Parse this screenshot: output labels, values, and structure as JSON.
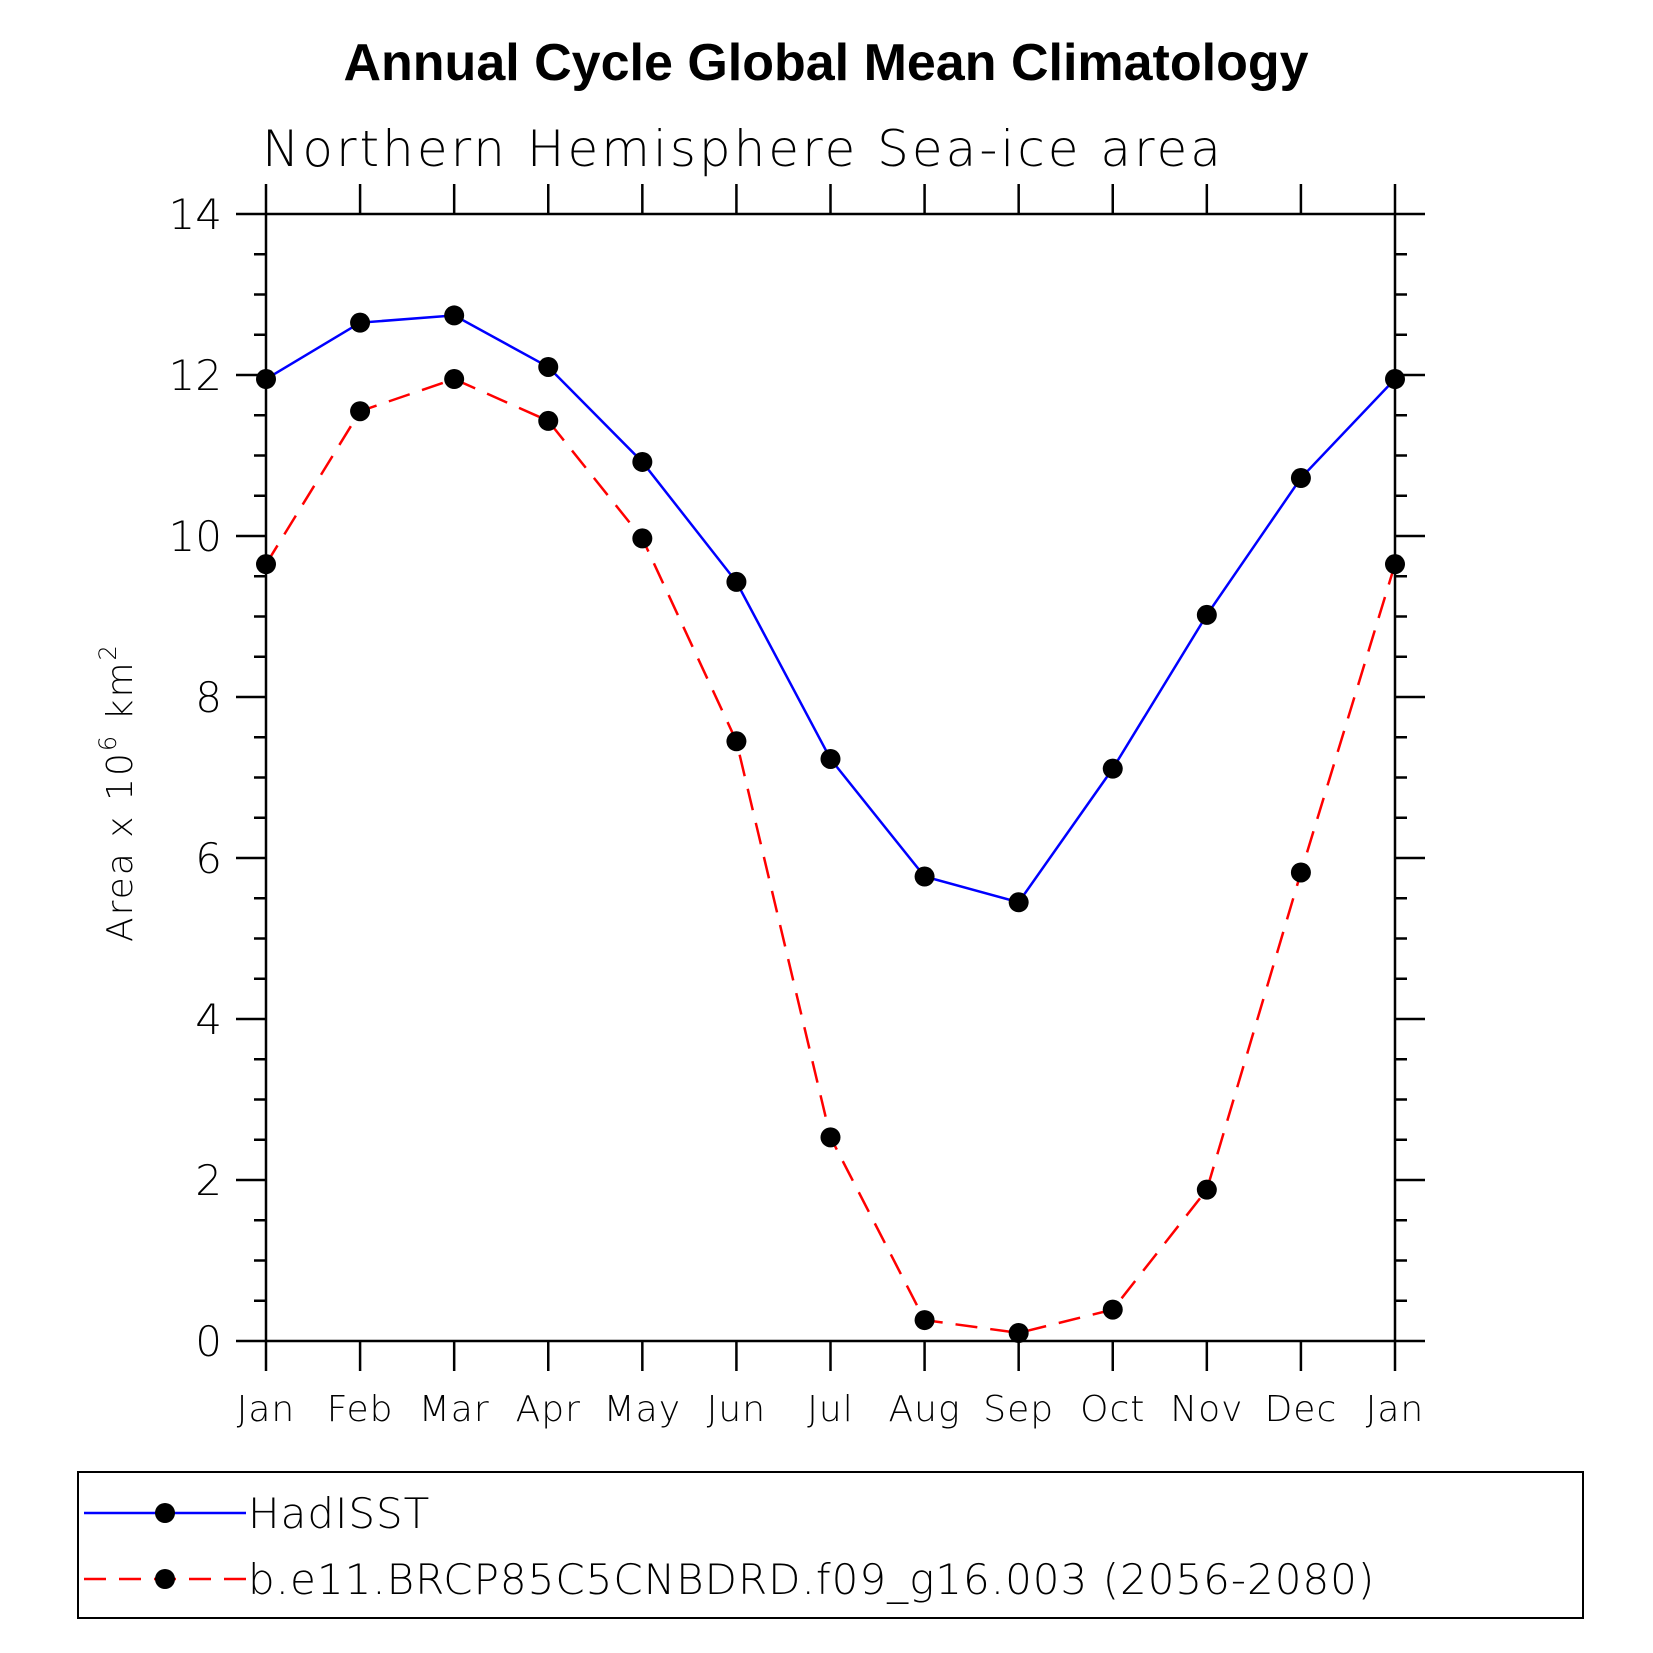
{
  "chart_data": {
    "type": "line",
    "title": "Annual Cycle Global Mean Climatology",
    "subtitle": "Northern Hemisphere Sea-ice area",
    "ylabel_text": "Area x 10",
    "ylabel_exp": "6",
    "ylabel_unit": "km",
    "ylabel_unit_exp": "2",
    "xlabel": "",
    "ylim": [
      0,
      14
    ],
    "yticks": [
      0,
      2,
      4,
      6,
      8,
      10,
      12,
      14
    ],
    "categories": [
      "Jan",
      "Feb",
      "Mar",
      "Apr",
      "May",
      "Jun",
      "Jul",
      "Aug",
      "Sep",
      "Oct",
      "Nov",
      "Dec",
      "Jan"
    ],
    "series": [
      {
        "name": "HadISST",
        "color": "#0000ff",
        "dash": "solid",
        "values": [
          11.95,
          12.65,
          12.74,
          12.1,
          10.92,
          9.43,
          7.23,
          5.77,
          5.45,
          7.11,
          9.02,
          10.72,
          11.95
        ]
      },
      {
        "name": "b.e11.BRCP85C5CNBDRD.f09_g16.003 (2056-2080)",
        "color": "#ff0000",
        "dash": "dashed",
        "values": [
          9.65,
          11.55,
          11.95,
          11.43,
          9.97,
          7.45,
          2.53,
          0.26,
          0.1,
          0.39,
          1.88,
          5.82,
          9.65
        ]
      }
    ],
    "marker": "filled-circle",
    "legend_position": "bottom",
    "grid": false
  }
}
